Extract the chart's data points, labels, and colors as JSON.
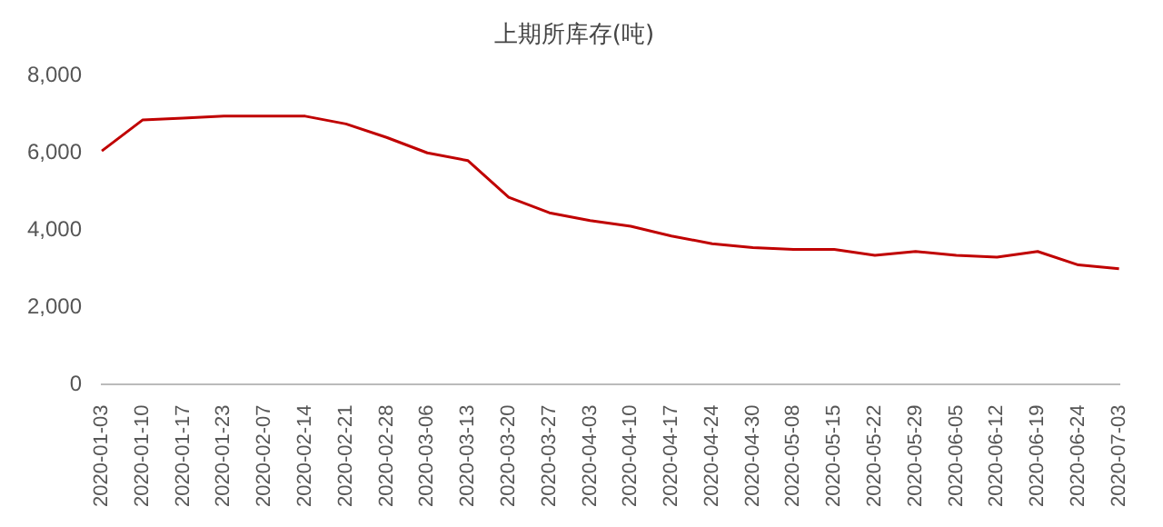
{
  "chart_data": {
    "type": "line",
    "title": "上期所库存(吨)",
    "categories": [
      "2020-01-03",
      "2020-01-10",
      "2020-01-17",
      "2020-01-23",
      "2020-02-07",
      "2020-02-14",
      "2020-02-21",
      "2020-02-28",
      "2020-03-06",
      "2020-03-13",
      "2020-03-20",
      "2020-03-27",
      "2020-04-03",
      "2020-04-10",
      "2020-04-17",
      "2020-04-24",
      "2020-04-30",
      "2020-05-08",
      "2020-05-15",
      "2020-05-22",
      "2020-05-29",
      "2020-06-05",
      "2020-06-12",
      "2020-06-19",
      "2020-06-24",
      "2020-07-03"
    ],
    "series": [
      {
        "color": "#c00000",
        "values": [
          6050,
          6850,
          6900,
          6950,
          6950,
          6950,
          6750,
          6400,
          6000,
          5800,
          4850,
          4450,
          4250,
          4100,
          3850,
          3650,
          3550,
          3500,
          3500,
          3350,
          3450,
          3350,
          3300,
          3450,
          3100,
          3000
        ]
      }
    ],
    "ylim": [
      0,
      8000
    ],
    "yticks": [
      {
        "value": 0,
        "label": "0"
      },
      {
        "value": 2000,
        "label": "2,000"
      },
      {
        "value": 4000,
        "label": "4,000"
      },
      {
        "value": 6000,
        "label": "6,000"
      },
      {
        "value": 8000,
        "label": "8,000"
      }
    ],
    "grid": false,
    "legend": false,
    "marker": "none",
    "line_style": "solid"
  }
}
